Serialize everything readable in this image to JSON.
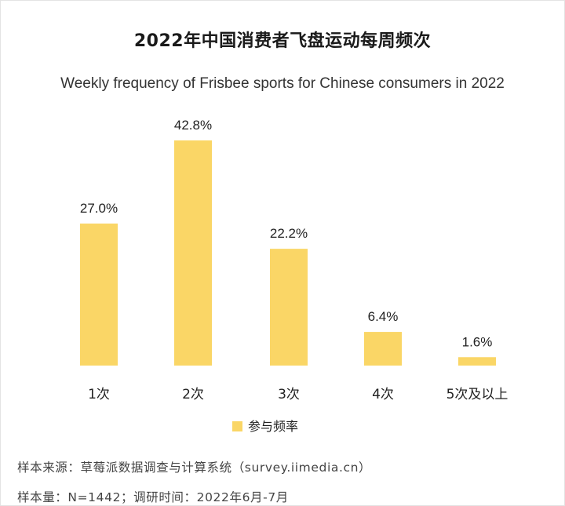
{
  "title": "2022年中国消费者飞盘运动每周频次",
  "subtitle": "Weekly frequency of Frisbee sports for Chinese consumers in 2022",
  "colors": {
    "bar": "#fad666",
    "text": "#222222"
  },
  "chart_data": {
    "type": "bar",
    "categories": [
      "1次",
      "2次",
      "3次",
      "4次",
      "5次及以上"
    ],
    "series": [
      {
        "name": "参与频率",
        "values": [
          27.0,
          42.8,
          22.2,
          6.4,
          1.6
        ]
      }
    ],
    "data_labels": [
      "27.0%",
      "42.8%",
      "22.2%",
      "6.4%",
      "1.6%"
    ],
    "ylim": [
      0,
      42.8
    ],
    "grid": false,
    "legend_position": "bottom"
  },
  "footer": {
    "source": "样本来源：草莓派数据调查与计算系统（survey.iimedia.cn）",
    "sample": "样本量：N=1442；调研时间：2022年6月-7月"
  }
}
